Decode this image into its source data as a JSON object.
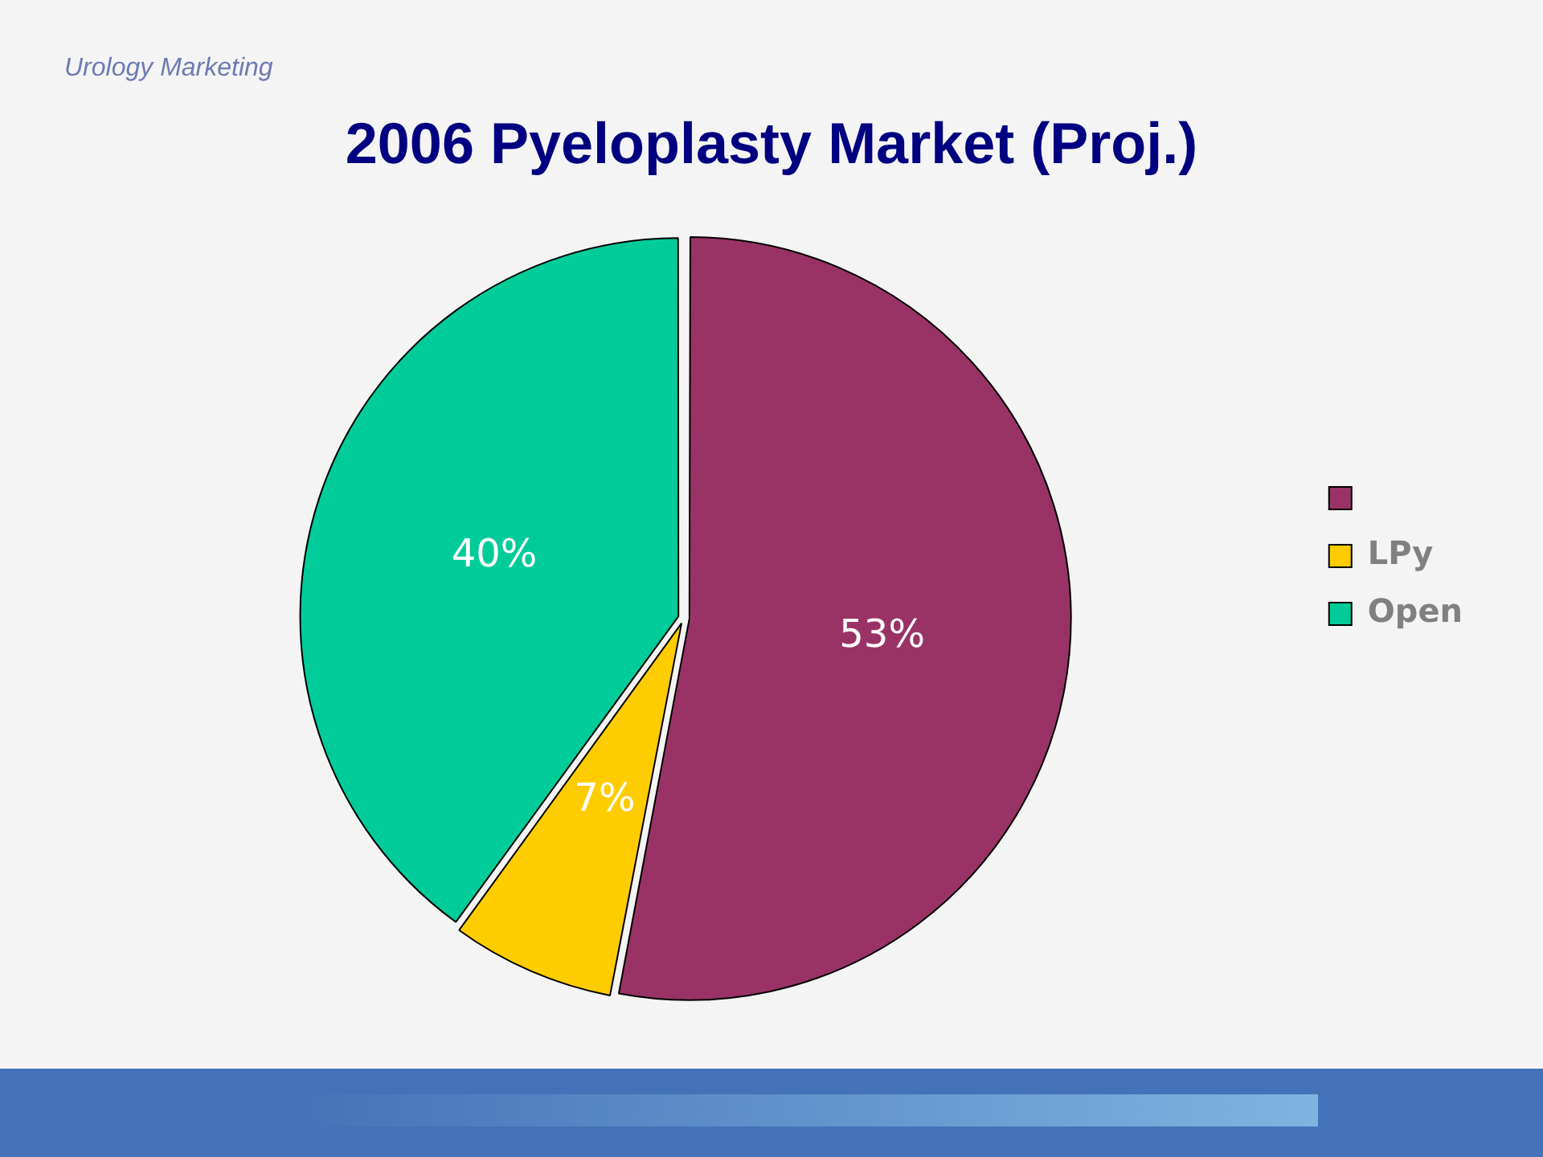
{
  "chart_data": {
    "type": "pie",
    "title": "2006 Pyeloplasty Market (Proj.)",
    "annotations": [
      "Urology Marketing"
    ],
    "categories": [
      null,
      "LPy",
      "Open"
    ],
    "values": [
      53,
      7,
      40
    ],
    "colors": [
      "#993366",
      "#ffcc00",
      "#00cc99"
    ],
    "value_labels": [
      "53%",
      "7%",
      "40%"
    ],
    "legend": "right"
  }
}
